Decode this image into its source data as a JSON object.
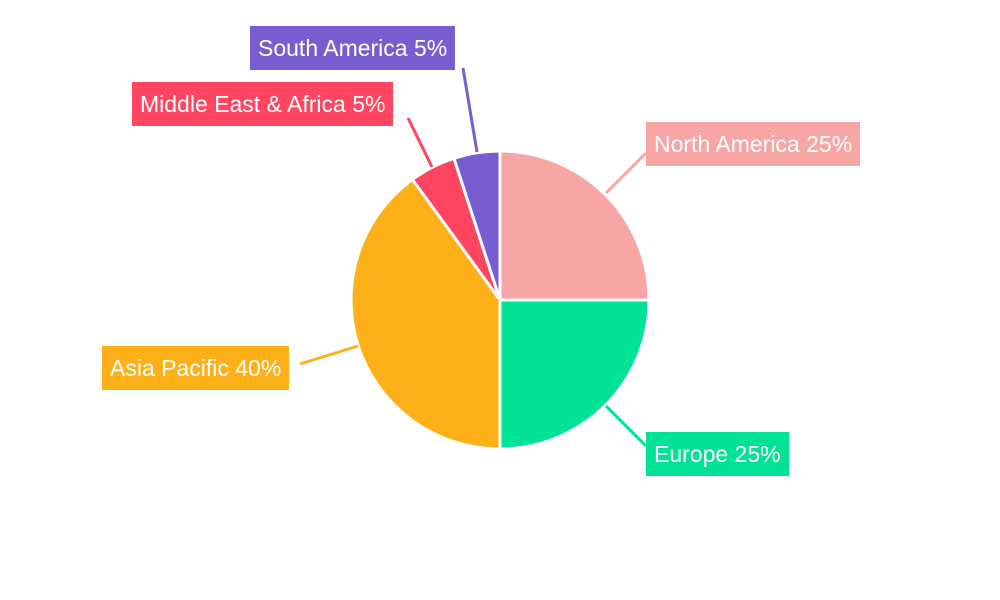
{
  "chart_data": {
    "type": "pie",
    "title": "",
    "start_angle_deg": 0,
    "direction": "clockwise",
    "slices": [
      {
        "label": "North America",
        "value": 25,
        "display": "North America 25%",
        "color": "#F8A5A6"
      },
      {
        "label": "Europe",
        "value": 25,
        "display": "Europe 25%",
        "color": "#00E396"
      },
      {
        "label": "Asia Pacific",
        "value": 40,
        "display": "Asia Pacific 40%",
        "color": "#FEB019"
      },
      {
        "label": "Middle East & Africa",
        "value": 5,
        "display": "Middle East & Africa 5%",
        "color": "#FF4560"
      },
      {
        "label": "South America",
        "value": 5,
        "display": "South America 5%",
        "color": "#775DD0"
      }
    ]
  }
}
